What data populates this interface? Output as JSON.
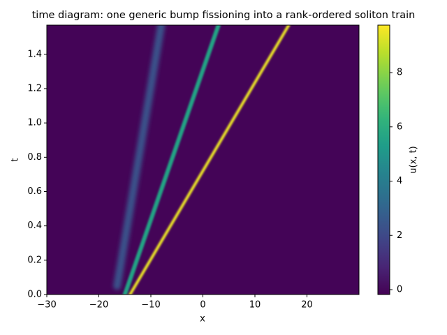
{
  "chart_data": {
    "type": "heatmap",
    "title": "time diagram: one generic bump fissioning into a rank-ordered soliton train",
    "xlabel": "x",
    "ylabel": "t",
    "xlim": [
      -30,
      30
    ],
    "ylim": [
      0,
      1.57
    ],
    "xticks": [
      {
        "value": -30,
        "label": "−30"
      },
      {
        "value": -20,
        "label": "−20"
      },
      {
        "value": -10,
        "label": "−10"
      },
      0,
      10,
      20
    ],
    "yticks": [
      {
        "value": 0,
        "label": "0.0"
      },
      0.2,
      0.4,
      0.6,
      0.8,
      {
        "value": 1,
        "label": "1.0"
      },
      1.2,
      1.4
    ],
    "colormap": "viridis",
    "background_value": -0.1,
    "ridges": [
      {
        "x": [
          -16.5,
          -8
        ],
        "t": [
          0.05,
          1.57
        ],
        "value": 2.3
      },
      {
        "x": [
          -15,
          3
        ],
        "t": [
          0,
          1.57
        ],
        "value": 5.6
      },
      {
        "x": [
          -14,
          16.5
        ],
        "t": [
          0,
          1.57
        ],
        "value": 9.5
      }
    ],
    "colorbar": {
      "label": "u(x, t)",
      "clim": [
        -0.18,
        9.75
      ],
      "ticks": [
        0,
        2,
        4,
        6,
        8
      ]
    }
  }
}
